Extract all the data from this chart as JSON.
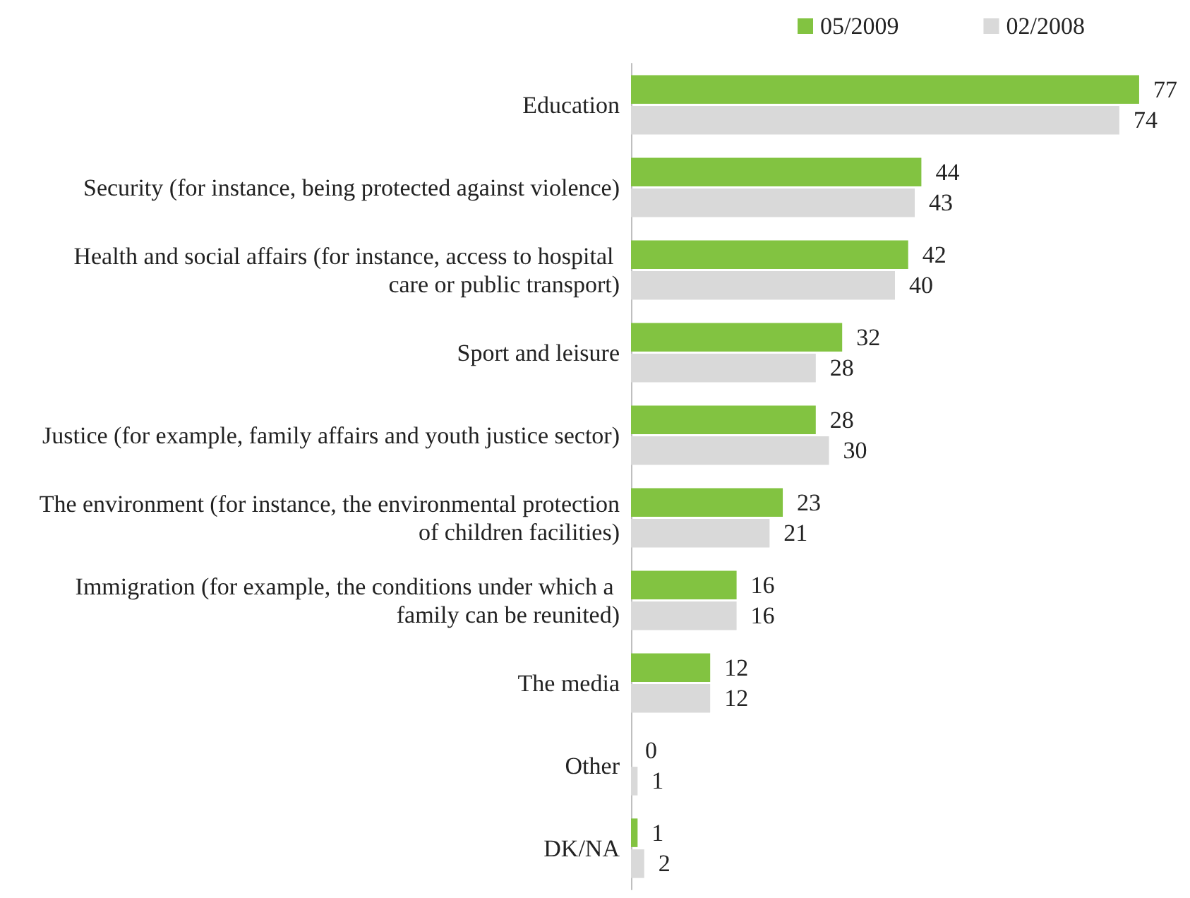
{
  "chart_data": {
    "type": "bar",
    "orientation": "horizontal",
    "data_labels": true,
    "legend": "top",
    "grid": false,
    "categories": [
      "Education",
      "Security (for instance, being protected against violence)",
      "Health and social affairs (for instance, access to hospital care or public transport)",
      "Sport and leisure",
      "Justice (for example, family affairs and youth justice sector)",
      "The environment (for instance, the environmental protection of children facilities)",
      "Immigration (for example, the conditions under which a family can be reunited)",
      "The media",
      "Other",
      "DK/NA"
    ],
    "series": [
      {
        "name": "05/2009",
        "color": "#82c341",
        "values": [
          77,
          44,
          42,
          32,
          28,
          23,
          16,
          12,
          0,
          1
        ]
      },
      {
        "name": "02/2008",
        "color": "#d9d9d9",
        "values": [
          74,
          43,
          40,
          28,
          30,
          21,
          16,
          12,
          1,
          2
        ]
      }
    ]
  }
}
